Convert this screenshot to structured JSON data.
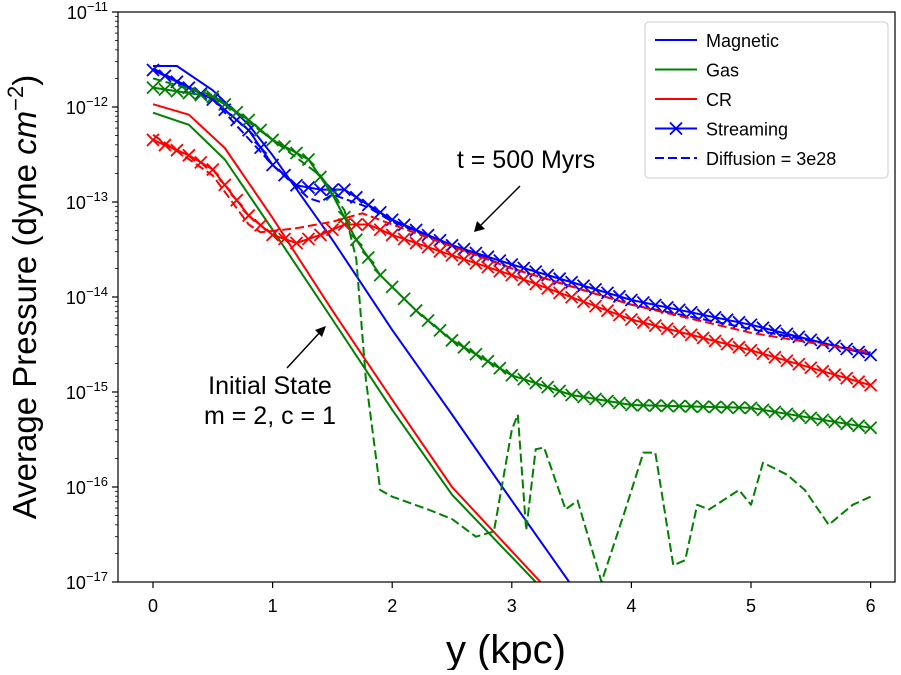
{
  "chart_data": {
    "type": "line",
    "xlabel": "y (kpc)",
    "ylabel_main": "Average Pressure (dyne ",
    "ylabel_unit": "cm",
    "ylabel_exp": "−2",
    "ylabel_close": ")",
    "xlim": [
      -0.3,
      6.2
    ],
    "ylim": [
      1e-17,
      1e-11
    ],
    "yscale": "log",
    "grid": false,
    "x_ticks": [
      "0",
      "1",
      "2",
      "3",
      "4",
      "5",
      "6"
    ],
    "y_ticks": [
      {
        "base": "10",
        "exp": "−11",
        "value": 1e-11
      },
      {
        "base": "10",
        "exp": "−12",
        "value": 1e-12
      },
      {
        "base": "10",
        "exp": "−13",
        "value": 1e-13
      },
      {
        "base": "10",
        "exp": "−14",
        "value": 1e-14
      },
      {
        "base": "10",
        "exp": "−15",
        "value": 1e-15
      },
      {
        "base": "10",
        "exp": "−16",
        "value": 1e-16
      },
      {
        "base": "10",
        "exp": "−17",
        "value": 1e-17
      }
    ],
    "legend_placement": "top-right",
    "legend": [
      {
        "label": "Magnetic",
        "color": "#0000ff",
        "style": "solid"
      },
      {
        "label": "Gas",
        "color": "#008000",
        "style": "solid"
      },
      {
        "label": "CR",
        "color": "#ff0000",
        "style": "solid"
      },
      {
        "label": "Streaming",
        "color": "#0000ff",
        "style": "solid-x"
      },
      {
        "label": "Diffusion = 3e28",
        "color": "#0000ff",
        "style": "dashed"
      }
    ],
    "annotations": [
      {
        "lines": [
          "t = 500 Myrs"
        ]
      },
      {
        "lines": [
          "Initial State",
          "m = 2, c = 1"
        ]
      }
    ],
    "series": [
      {
        "group": "initial",
        "quantity": "Magnetic",
        "color": "#0000ff",
        "style": "solid",
        "x": [
          0,
          0.2,
          0.5,
          0.8,
          1.0,
          1.5,
          2.0,
          2.5,
          3.0,
          3.48
        ],
        "y": [
          2.7e-12,
          2.7e-12,
          1.5e-12,
          6.5e-13,
          3.1e-13,
          4e-14,
          4.5e-15,
          5.8e-16,
          7.2e-17,
          1e-17
        ]
      },
      {
        "group": "initial",
        "quantity": "Gas",
        "color": "#008000",
        "style": "solid",
        "x": [
          0,
          0.3,
          0.6,
          1.0,
          1.5,
          2.0,
          2.5,
          3.2
        ],
        "y": [
          8.7e-13,
          6.5e-13,
          2.8e-13,
          5.1e-14,
          5.8e-15,
          6.5e-16,
          8.3e-17,
          1e-17
        ]
      },
      {
        "group": "initial",
        "quantity": "CR",
        "color": "#ff0000",
        "style": "solid",
        "x": [
          0,
          0.3,
          0.6,
          1.0,
          1.5,
          2.0,
          2.5,
          3.24
        ],
        "y": [
          1.07e-12,
          8.3e-13,
          3.7e-13,
          6.8e-14,
          7.2e-15,
          8.3e-16,
          1e-16,
          1e-17
        ]
      },
      {
        "group": "streaming",
        "quantity": "Magnetic",
        "color": "#0000ff",
        "style": "solid-x",
        "x": [
          0,
          0.5,
          0.8,
          1.0,
          1.2,
          1.4,
          1.6,
          1.8,
          2.0,
          2.5,
          3.0,
          4.0,
          5.0,
          6.0
        ],
        "y": [
          2.45e-12,
          1.2e-12,
          5.7e-13,
          2.45e-13,
          1.5e-13,
          1.35e-13,
          1.35e-13,
          9.3e-14,
          6.5e-14,
          3.5e-14,
          2.2e-14,
          9.3e-15,
          5.1e-15,
          2.45e-15
        ]
      },
      {
        "group": "streaming",
        "quantity": "Gas",
        "color": "#008000",
        "style": "solid-x",
        "x": [
          0,
          0.5,
          0.8,
          1.0,
          1.3,
          1.5,
          1.7,
          1.9,
          2.2,
          2.5,
          3.0,
          3.5,
          4.0,
          5.0,
          6.0
        ],
        "y": [
          1.6e-12,
          1.28e-12,
          7.3e-13,
          4.5e-13,
          2.8e-13,
          1.2e-13,
          4e-14,
          1.7e-14,
          7.2e-15,
          3.5e-15,
          1.5e-15,
          9.3e-16,
          7.3e-16,
          6.8e-16,
          4.2e-16
        ]
      },
      {
        "group": "streaming",
        "quantity": "CR",
        "color": "#ff0000",
        "style": "solid-x",
        "x": [
          0,
          0.3,
          0.5,
          0.8,
          1.0,
          1.2,
          1.4,
          1.6,
          1.8,
          2.0,
          2.5,
          3.0,
          4.0,
          5.0,
          6.0
        ],
        "y": [
          4.5e-13,
          3.1e-13,
          2.2e-13,
          7.2e-14,
          4.5e-14,
          3.7e-14,
          4.5e-14,
          5.8e-14,
          5.8e-14,
          4.5e-14,
          2.75e-14,
          1.7e-14,
          5.8e-15,
          2.75e-15,
          1.18e-15
        ]
      },
      {
        "group": "diffusion",
        "quantity": "Magnetic",
        "color": "#0000ff",
        "style": "dashed",
        "x": [
          0,
          0.5,
          1.0,
          1.3,
          1.4,
          1.5,
          1.8,
          2.0,
          3.0,
          4.0,
          5.0,
          6.0
        ],
        "y": [
          2.55e-12,
          1.2e-12,
          2.45e-13,
          1.1e-13,
          1e-13,
          1.2e-13,
          8.8e-14,
          6.2e-14,
          2e-14,
          8.3e-15,
          4.6e-15,
          2.6e-15
        ]
      },
      {
        "group": "diffusion",
        "quantity": "Gas",
        "color": "#008000",
        "style": "dashed",
        "x": [
          0,
          0.5,
          1.0,
          1.4,
          1.6,
          1.7,
          1.78,
          1.9,
          2.0,
          2.3,
          2.5,
          2.7,
          2.85,
          3.0,
          3.05,
          3.12,
          3.2,
          3.27,
          3.45,
          3.55,
          3.75,
          3.95,
          4.1,
          4.2,
          4.35,
          4.45,
          4.55,
          4.65,
          4.9,
          5.0,
          5.1,
          5.3,
          5.45,
          5.65,
          5.85,
          6.0
        ],
        "y": [
          2e-12,
          1.33e-12,
          4.5e-13,
          1.9e-13,
          8.2e-14,
          2.5e-14,
          1.35e-15,
          9.3e-17,
          7.9e-17,
          5.8e-17,
          4.6e-17,
          3e-17,
          3.4e-17,
          4e-16,
          5.8e-16,
          3.5e-17,
          2.5e-16,
          2.6e-16,
          5.8e-17,
          7.2e-17,
          1e-17,
          5.8e-17,
          2.3e-16,
          2.3e-16,
          1.5e-17,
          1.7e-17,
          6.5e-17,
          5.8e-17,
          9.3e-17,
          6.5e-17,
          1.8e-16,
          1.35e-16,
          9.3e-17,
          4e-17,
          6.5e-17,
          7.9e-17
        ]
      },
      {
        "group": "diffusion",
        "quantity": "CR",
        "color": "#ff0000",
        "style": "dashed",
        "x": [
          0,
          0.5,
          0.8,
          0.9,
          1.2,
          1.5,
          1.75,
          2.0,
          3.0,
          4.0,
          5.0,
          6.0
        ],
        "y": [
          5.1e-13,
          1.9e-13,
          5.8e-14,
          4.8e-14,
          5.3e-14,
          6.2e-14,
          7.6e-14,
          5.8e-14,
          2e-14,
          8.3e-15,
          4.2e-15,
          2.6e-15
        ]
      }
    ]
  }
}
